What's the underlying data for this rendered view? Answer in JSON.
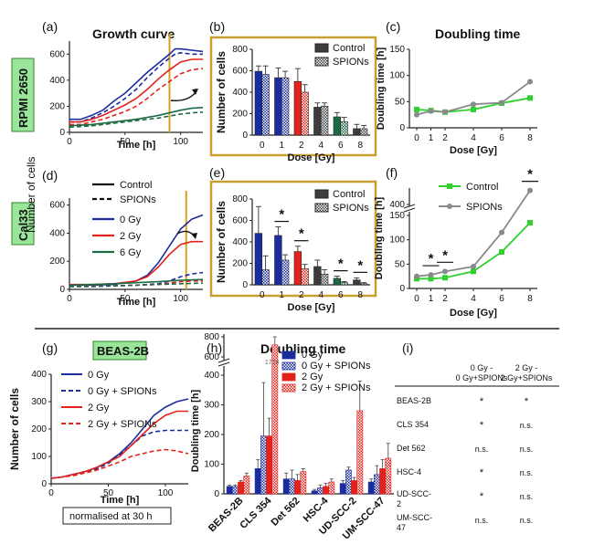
{
  "figure": {
    "panel_letters": [
      "(a)",
      "(b)",
      "(c)",
      "(d)",
      "(e)",
      "(f)",
      "(g)",
      "(h)",
      "(i)"
    ],
    "cell_lines": {
      "top": "RPMI 2650",
      "middle": "Cal33",
      "bottom": "BEAS-2B"
    },
    "titles": {
      "growth": "Growth curve",
      "doubling_top": "Doubling time",
      "doubling_bottom": "Doubling time"
    },
    "axis_labels": {
      "number_of_cells": "Number of cells",
      "time": "Time [h]",
      "dose": "Dose [Gy]",
      "doubling": "Doubling time [h]"
    },
    "legend_growth": {
      "control": "Control",
      "spions": "SPIONs",
      "g0": "0 Gy",
      "g2": "2 Gy",
      "g6": "6 Gy"
    },
    "legend_g": [
      "0 Gy",
      "0 Gy + SPIONs",
      "2 Gy",
      "2 Gy + SPIONs"
    ],
    "legend_h": [
      "0 Gy",
      "0 Gy + SPIONs",
      "2 Gy",
      "2 Gy + SPIONs"
    ],
    "note": "normalised at 30 h",
    "star": "*",
    "outlier_label": "1724"
  },
  "colors": {
    "blue": "#1b2c9e",
    "red": "#e3221c",
    "green": "#1d6b45",
    "dark": "#3c3c3c",
    "light_green": "#2fd12f",
    "grey": "#8a8a8a",
    "box": "#c8a030",
    "cell_label": "#9be59b",
    "vline": "#d8a21f"
  },
  "chart_data": [
    {
      "panel": "(a)",
      "type": "line",
      "title": "Growth curve",
      "xlabel": "Time [h]",
      "ylabel": "Number of cells",
      "xlim": [
        0,
        120
      ],
      "ylim": [
        0,
        700
      ],
      "xticks": [
        0,
        50,
        100
      ],
      "yticks": [
        0,
        200,
        400,
        600
      ],
      "series": [
        {
          "name": "0 Gy Control",
          "style": "solid",
          "x": [
            0,
            10,
            20,
            30,
            40,
            50,
            60,
            70,
            80,
            90,
            95,
            100,
            110,
            120
          ],
          "y": [
            100,
            100,
            130,
            170,
            240,
            300,
            380,
            460,
            530,
            600,
            640,
            640,
            630,
            620
          ]
        },
        {
          "name": "0 Gy SPIONs",
          "style": "dashed",
          "x": [
            0,
            10,
            20,
            30,
            40,
            50,
            60,
            70,
            80,
            90,
            95,
            100,
            110,
            120
          ],
          "y": [
            80,
            80,
            110,
            150,
            200,
            260,
            330,
            420,
            500,
            570,
            600,
            610,
            600,
            600
          ]
        },
        {
          "name": "2 Gy Control",
          "style": "solid",
          "x": [
            0,
            10,
            20,
            30,
            40,
            50,
            60,
            70,
            80,
            90,
            100,
            110,
            120
          ],
          "y": [
            80,
            80,
            100,
            130,
            170,
            210,
            260,
            330,
            410,
            480,
            540,
            560,
            560
          ]
        },
        {
          "name": "2 Gy SPIONs",
          "style": "dashed",
          "x": [
            0,
            10,
            20,
            30,
            40,
            50,
            60,
            70,
            80,
            90,
            100,
            110,
            120
          ],
          "y": [
            60,
            60,
            80,
            100,
            130,
            160,
            200,
            260,
            330,
            390,
            450,
            480,
            490
          ]
        },
        {
          "name": "6 Gy Control",
          "style": "solid",
          "x": [
            0,
            20,
            40,
            60,
            80,
            100,
            110,
            120
          ],
          "y": [
            50,
            60,
            80,
            100,
            130,
            170,
            185,
            190
          ]
        },
        {
          "name": "6 Gy SPIONs",
          "style": "dashed",
          "x": [
            0,
            20,
            40,
            60,
            80,
            100,
            110,
            120
          ],
          "y": [
            40,
            50,
            70,
            90,
            110,
            140,
            150,
            155
          ]
        }
      ],
      "vline_x": 90
    },
    {
      "panel": "(b)",
      "type": "bar",
      "xlabel": "Dose [Gy]",
      "ylabel": "Number of cells",
      "categories": [
        "0",
        "1",
        "2",
        "4",
        "6",
        "8"
      ],
      "ylim": [
        0,
        800
      ],
      "yticks": [
        0,
        200,
        400,
        600,
        800
      ],
      "series": [
        {
          "name": "Control",
          "values": [
            595,
            535,
            500,
            260,
            170,
            60
          ],
          "errors": [
            50,
            90,
            120,
            40,
            40,
            40
          ]
        },
        {
          "name": "SPIONs",
          "values": [
            565,
            535,
            400,
            270,
            125,
            60
          ],
          "errors": [
            80,
            60,
            70,
            30,
            40,
            30
          ]
        }
      ]
    },
    {
      "panel": "(c)",
      "type": "line",
      "title": "Doubling time",
      "xlabel": "Dose [Gy]",
      "ylabel": "Doubling time [h]",
      "x": [
        0,
        1,
        2,
        4,
        6,
        8
      ],
      "ylim": [
        0,
        150
      ],
      "yticks": [
        0,
        50,
        100,
        150
      ],
      "series": [
        {
          "name": "Control",
          "values": [
            35,
            33,
            30,
            35,
            47,
            57
          ]
        },
        {
          "name": "SPIONs",
          "values": [
            25,
            32,
            30,
            45,
            48,
            88
          ]
        }
      ]
    },
    {
      "panel": "(d)",
      "type": "line",
      "xlabel": "Time [h]",
      "ylabel": "Number of cells",
      "xlim": [
        0,
        120
      ],
      "ylim": [
        0,
        650
      ],
      "xticks": [
        0,
        50,
        100
      ],
      "yticks": [
        0,
        200,
        400,
        600
      ],
      "series": [
        {
          "name": "0 Gy Control",
          "style": "solid",
          "x": [
            0,
            20,
            40,
            60,
            70,
            80,
            90,
            100,
            110,
            120
          ],
          "y": [
            30,
            30,
            35,
            60,
            100,
            190,
            310,
            430,
            500,
            530
          ]
        },
        {
          "name": "0 Gy SPIONs",
          "style": "dashed",
          "x": [
            0,
            20,
            40,
            60,
            80,
            90,
            100,
            110,
            120
          ],
          "y": [
            20,
            20,
            25,
            30,
            40,
            60,
            90,
            110,
            120
          ]
        },
        {
          "name": "2 Gy Control",
          "style": "solid",
          "x": [
            0,
            20,
            40,
            60,
            70,
            80,
            90,
            100,
            110,
            120
          ],
          "y": [
            35,
            35,
            40,
            60,
            90,
            160,
            250,
            320,
            340,
            340
          ]
        },
        {
          "name": "2 Gy SPIONs",
          "style": "dashed",
          "x": [
            0,
            20,
            40,
            60,
            80,
            90,
            100,
            110,
            120
          ],
          "y": [
            25,
            25,
            25,
            30,
            35,
            45,
            55,
            60,
            60
          ]
        },
        {
          "name": "6 Gy Control",
          "style": "solid",
          "x": [
            0,
            40,
            80,
            100,
            120
          ],
          "y": [
            30,
            40,
            55,
            65,
            70
          ]
        },
        {
          "name": "6 Gy SPIONs",
          "style": "dashed",
          "x": [
            0,
            40,
            80,
            100,
            120
          ],
          "y": [
            20,
            25,
            35,
            40,
            45
          ]
        }
      ],
      "vline_x": 105
    },
    {
      "panel": "(e)",
      "type": "bar",
      "xlabel": "Dose [Gy]",
      "ylabel": "Number of cells",
      "categories": [
        "0",
        "1",
        "2",
        "4",
        "6",
        "8"
      ],
      "ylim": [
        0,
        800
      ],
      "yticks": [
        0,
        200,
        400,
        600,
        800
      ],
      "series": [
        {
          "name": "Control",
          "values": [
            480,
            460,
            310,
            170,
            60,
            45
          ],
          "errors": [
            250,
            80,
            50,
            60,
            20,
            20
          ]
        },
        {
          "name": "SPIONs",
          "values": [
            140,
            230,
            150,
            100,
            20,
            10
          ],
          "errors": [
            130,
            50,
            40,
            40,
            10,
            10
          ]
        }
      ],
      "significance": [
        "1",
        "2",
        "6",
        "8"
      ]
    },
    {
      "panel": "(f)",
      "type": "line",
      "xlabel": "Dose [Gy]",
      "ylabel": "Doubling time [h]",
      "x": [
        0,
        1,
        2,
        4,
        6,
        8
      ],
      "yticks": [
        0,
        50,
        100,
        150,
        400
      ],
      "series": [
        {
          "name": "Control",
          "values": [
            20,
            20,
            22,
            35,
            75,
            135
          ]
        },
        {
          "name": "SPIONs",
          "values": [
            25,
            28,
            35,
            45,
            115,
            470
          ]
        }
      ],
      "significance": [
        "1",
        "2",
        "8"
      ]
    },
    {
      "panel": "(g)",
      "type": "line",
      "xlabel": "Time [h]",
      "ylabel": "Number of cells",
      "xlim": [
        0,
        120
      ],
      "ylim": [
        0,
        400
      ],
      "xticks": [
        0,
        50,
        100
      ],
      "yticks": [
        0,
        100,
        200,
        300,
        400
      ],
      "series": [
        {
          "name": "0 Gy",
          "style": "solid",
          "x": [
            0,
            10,
            20,
            30,
            40,
            50,
            60,
            70,
            80,
            90,
            100,
            110,
            120
          ],
          "y": [
            20,
            25,
            35,
            45,
            60,
            80,
            110,
            150,
            200,
            250,
            280,
            300,
            310
          ]
        },
        {
          "name": "0 Gy + SPIONs",
          "style": "dashed",
          "x": [
            0,
            10,
            20,
            30,
            40,
            50,
            60,
            70,
            80,
            90,
            100,
            110,
            120
          ],
          "y": [
            20,
            25,
            35,
            45,
            55,
            75,
            105,
            140,
            175,
            190,
            195,
            195,
            195
          ]
        },
        {
          "name": "2 Gy",
          "style": "solid",
          "x": [
            0,
            10,
            20,
            30,
            40,
            50,
            60,
            70,
            80,
            90,
            100,
            110,
            120
          ],
          "y": [
            20,
            25,
            35,
            45,
            60,
            80,
            100,
            140,
            180,
            220,
            250,
            265,
            265
          ]
        },
        {
          "name": "2 Gy + SPIONs",
          "style": "dashed",
          "x": [
            0,
            10,
            20,
            30,
            40,
            50,
            60,
            70,
            80,
            90,
            100,
            110,
            120
          ],
          "y": [
            20,
            25,
            30,
            40,
            50,
            65,
            80,
            100,
            110,
            120,
            125,
            120,
            110
          ]
        }
      ]
    },
    {
      "panel": "(h)",
      "type": "bar",
      "title": "Doubling time",
      "ylabel": "Doubling time [h]",
      "categories": [
        "BEAS-2B",
        "CLS 354",
        "Det 562",
        "HSC-4",
        "UD-SCC-2",
        "UM-SCC-47"
      ],
      "yticks": [
        0,
        100,
        200,
        300,
        400,
        600,
        800
      ],
      "series": [
        {
          "name": "0 Gy",
          "values": [
            25,
            85,
            50,
            10,
            35,
            40
          ],
          "errors": [
            5,
            30,
            20,
            5,
            10,
            10
          ]
        },
        {
          "name": "0 Gy + SPIONs",
          "values": [
            25,
            195,
            50,
            20,
            80,
            65
          ],
          "errors": [
            5,
            180,
            30,
            10,
            10,
            30
          ]
        },
        {
          "name": "2 Gy",
          "values": [
            40,
            195,
            45,
            25,
            45,
            85
          ],
          "errors": [
            5,
            60,
            20,
            10,
            10,
            30
          ]
        },
        {
          "name": "2 Gy + SPIONs",
          "values": [
            60,
            720,
            75,
            40,
            280,
            120
          ],
          "errors": [
            10,
            1000,
            10,
            10,
            100,
            50
          ]
        }
      ]
    },
    {
      "panel": "(i)",
      "type": "table",
      "columns": [
        "",
        "0 Gy -\n0 Gy+SPIONs",
        "2 Gy -\n2 Gy+SPIONs"
      ],
      "rows": [
        [
          "BEAS-2B",
          "*",
          "*"
        ],
        [
          "CLS 354",
          "*",
          "n.s."
        ],
        [
          "Det 562",
          "n.s.",
          "n.s."
        ],
        [
          "HSC-4",
          "*",
          "n.s."
        ],
        [
          "UD-SCC-2",
          "*",
          "n.s."
        ],
        [
          "UM-SCC-47",
          "n.s.",
          "n.s."
        ]
      ]
    }
  ]
}
